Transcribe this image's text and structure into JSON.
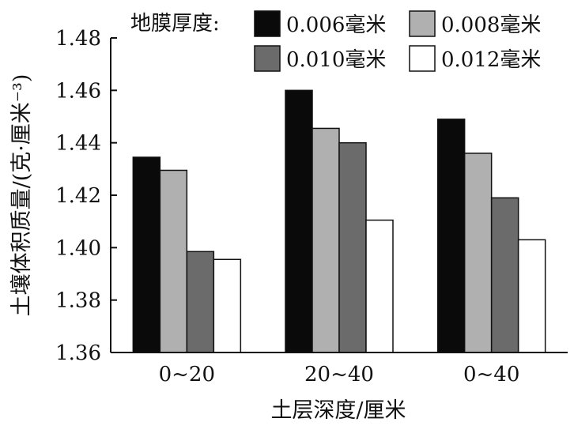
{
  "chart_data": {
    "type": "bar",
    "title": "",
    "xlabel": "土层深度/厘米",
    "ylabel": "土壤体积质量/(克·厘米⁻³)",
    "ylim": [
      1.36,
      1.48
    ],
    "yticks": [
      "1.36",
      "1.38",
      "1.40",
      "1.42",
      "1.44",
      "1.46",
      "1.48"
    ],
    "categories": [
      "0~20",
      "20~40",
      "0~40"
    ],
    "legend_title": "地膜厚度:",
    "legend_placement": "top-right",
    "grid": false,
    "series": [
      {
        "name": "0.006毫米",
        "color": "#0a0a0a",
        "values": [
          1.4345,
          1.46,
          1.449
        ]
      },
      {
        "name": "0.008毫米",
        "color": "#b0b0b0",
        "values": [
          1.4295,
          1.4455,
          1.436
        ]
      },
      {
        "name": "0.010毫米",
        "color": "#6b6b6b",
        "values": [
          1.3985,
          1.44,
          1.419
        ]
      },
      {
        "name": "0.012毫米",
        "color": "#ffffff",
        "values": [
          1.3955,
          1.4105,
          1.403
        ]
      }
    ]
  }
}
